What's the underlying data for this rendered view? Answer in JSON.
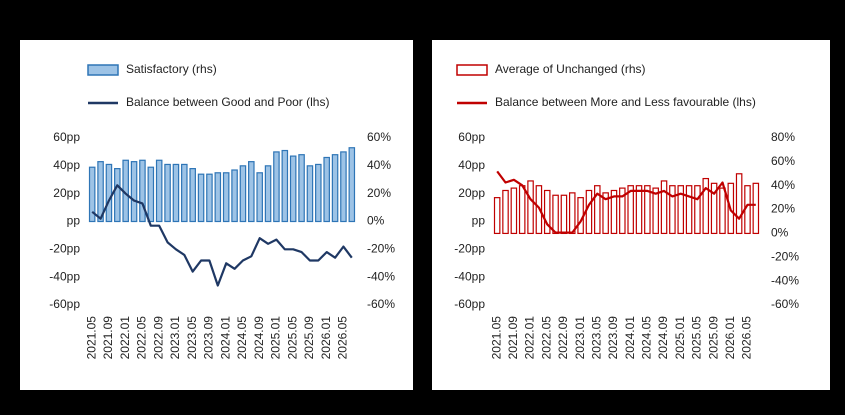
{
  "chart_data": [
    {
      "type": "combo",
      "categories": [
        "2021.05",
        null,
        "2021.09",
        null,
        "2022.01",
        null,
        "2022.05",
        null,
        "2022.09",
        null,
        "2023.01",
        null,
        "2023.05",
        null,
        "2023.09",
        null,
        "2024.01",
        null,
        "2024.05",
        null,
        "2024.09",
        null,
        "2025.01",
        null,
        "2025.05",
        null,
        "2025.09",
        null,
        "2026.01",
        null,
        "2026.05",
        null
      ],
      "series": [
        {
          "name": "Satisfactory (rhs)",
          "kind": "bar",
          "axis": "y2",
          "color": "#9dc3e6",
          "stroke": "#2e75b6",
          "values": [
            39,
            43,
            41,
            38,
            44,
            43,
            44,
            39,
            44,
            41,
            41,
            41,
            38,
            34,
            34,
            35,
            35,
            37,
            40,
            43,
            35,
            40,
            50,
            51,
            47,
            48,
            40,
            41,
            46,
            48,
            50,
            53
          ]
        },
        {
          "name": "Balance between Good and Poor (lhs)",
          "kind": "line",
          "color": "#1f3864",
          "values": [
            7,
            2,
            15,
            26,
            20,
            15,
            13,
            -3,
            -3,
            -15,
            -20,
            -24,
            -36,
            -28,
            -28,
            -46,
            -30,
            -34,
            -28,
            -25,
            -12,
            -16,
            -13,
            -20,
            -20,
            -22,
            -28,
            -28,
            -22,
            -26,
            -18,
            -26
          ]
        }
      ],
      "ylim": [
        -60,
        60
      ],
      "yticks": [
        {
          "value": 60,
          "label": "60pp"
        },
        {
          "value": 40,
          "label": "40pp"
        },
        {
          "value": 20,
          "label": "20pp"
        },
        {
          "value": 0,
          "label": "pp"
        },
        {
          "value": -20,
          "label": "-20pp"
        },
        {
          "value": -40,
          "label": "-40pp"
        },
        {
          "value": -60,
          "label": "-60pp"
        }
      ],
      "y2lim": [
        -60,
        60
      ],
      "y2ticks": [
        {
          "value": 60,
          "label": "60%"
        },
        {
          "value": 40,
          "label": "40%"
        },
        {
          "value": 20,
          "label": "20%"
        },
        {
          "value": 0,
          "label": "0%"
        },
        {
          "value": -20,
          "label": "-20%"
        },
        {
          "value": -40,
          "label": "-40%"
        },
        {
          "value": -60,
          "label": "-60%"
        }
      ]
    },
    {
      "type": "combo",
      "categories": [
        "2021.05",
        null,
        "2021.09",
        null,
        "2022.01",
        null,
        "2022.05",
        null,
        "2022.09",
        null,
        "2023.01",
        null,
        "2023.05",
        null,
        "2023.09",
        null,
        "2024.01",
        null,
        "2024.05",
        null,
        "2024.09",
        null,
        "2025.01",
        null,
        "2025.05",
        null,
        "2025.09",
        null,
        "2026.01",
        null,
        "2026.05",
        null
      ],
      "series": [
        {
          "name": "Average of Unchanged (rhs)",
          "kind": "bar",
          "axis": "y2",
          "color": "#ffffff",
          "stroke": "#c00000",
          "values": [
            30,
            36,
            38,
            40,
            44,
            40,
            36,
            32,
            32,
            34,
            30,
            36,
            40,
            34,
            36,
            38,
            40,
            40,
            40,
            38,
            44,
            40,
            40,
            40,
            40,
            46,
            42,
            38,
            42,
            50,
            40,
            42
          ]
        },
        {
          "name": "Balance between More and Less favourable (lhs)",
          "kind": "line",
          "color": "#c00000",
          "values": [
            36,
            28,
            30,
            26,
            16,
            10,
            -2,
            -8,
            -8,
            -8,
            0,
            12,
            20,
            16,
            18,
            18,
            22,
            22,
            22,
            20,
            22,
            18,
            20,
            18,
            16,
            24,
            20,
            28,
            8,
            2,
            12,
            12
          ]
        }
      ],
      "ylim": [
        -60,
        60
      ],
      "yticks": [
        {
          "value": 60,
          "label": "60pp"
        },
        {
          "value": 40,
          "label": "40pp"
        },
        {
          "value": 20,
          "label": "20pp"
        },
        {
          "value": 0,
          "label": "pp"
        },
        {
          "value": -20,
          "label": "-20pp"
        },
        {
          "value": -40,
          "label": "-40pp"
        },
        {
          "value": -60,
          "label": "-60pp"
        }
      ],
      "y2lim": [
        -60,
        80
      ],
      "y2ticks": [
        {
          "value": 80,
          "label": "80%"
        },
        {
          "value": 60,
          "label": "60%"
        },
        {
          "value": 40,
          "label": "40%"
        },
        {
          "value": 20,
          "label": "20%"
        },
        {
          "value": 0,
          "label": "0%"
        },
        {
          "value": -20,
          "label": "-20%"
        },
        {
          "value": -40,
          "label": "-40%"
        },
        {
          "value": -60,
          "label": "-60%"
        }
      ]
    }
  ]
}
